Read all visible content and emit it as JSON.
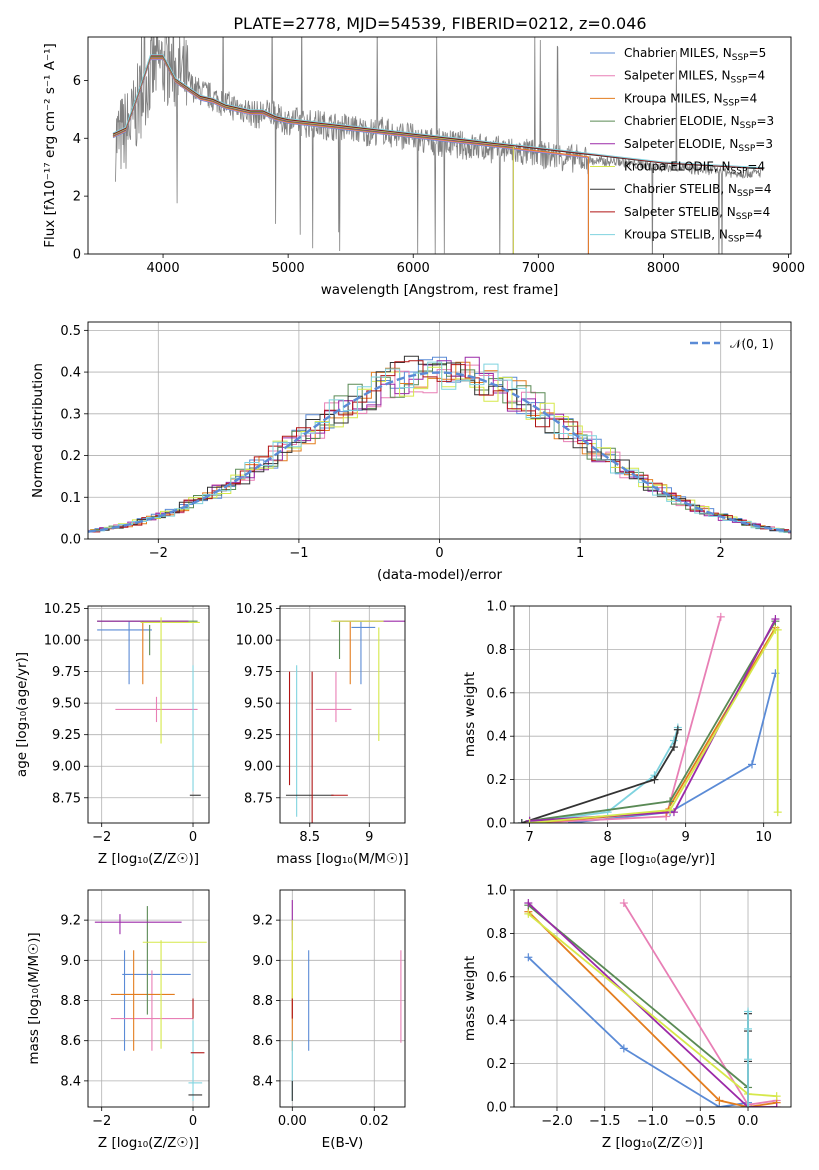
{
  "title": "PLATE=2778, MJD=54539, FIBERID=0212, z=0.046",
  "colors": {
    "chabrier_miles": "#5b8bd6",
    "salpeter_miles": "#e87fb5",
    "kroupa_miles": "#e37d1f",
    "chabrier_elodie": "#5a8a55",
    "salpeter_elodie": "#9b2aa8",
    "kroupa_elodie": "#d6e84a",
    "chabrier_stelib": "#333333",
    "salpeter_stelib": "#b01515",
    "kroupa_stelib": "#7fd3df",
    "data": "#808080",
    "gauss": "#5b8bd6"
  },
  "legend": [
    {
      "label": "Chabrier MILES, N",
      "sub": "SSP",
      "n": "=5",
      "color_key": "chabrier_miles"
    },
    {
      "label": "Salpeter MILES, N",
      "sub": "SSP",
      "n": "=4",
      "color_key": "salpeter_miles"
    },
    {
      "label": "Kroupa MILES, N",
      "sub": "SSP",
      "n": "=4",
      "color_key": "kroupa_miles"
    },
    {
      "label": "Chabrier ELODIE, N",
      "sub": "SSP",
      "n": "=3",
      "color_key": "chabrier_elodie"
    },
    {
      "label": "Salpeter ELODIE, N",
      "sub": "SSP",
      "n": "=3",
      "color_key": "salpeter_elodie"
    },
    {
      "label": "Kroupa ELODIE, N",
      "sub": "SSP",
      "n": "=4",
      "color_key": "kroupa_elodie"
    },
    {
      "label": "Chabrier STELIB, N",
      "sub": "SSP",
      "n": "=4",
      "color_key": "chabrier_stelib"
    },
    {
      "label": "Salpeter STELIB, N",
      "sub": "SSP",
      "n": "=4",
      "color_key": "salpeter_stelib"
    },
    {
      "label": "Kroupa STELIB, N",
      "sub": "SSP",
      "n": "=4",
      "color_key": "kroupa_stelib"
    }
  ],
  "chart_data": [
    {
      "id": "spectrum",
      "type": "line",
      "xlabel": "wavelength [Angstrom, rest frame]",
      "ylabel": "Flux [fλ10⁻¹⁷ erg cm⁻² s⁻¹ A⁻¹]",
      "xlim": [
        3400,
        9020
      ],
      "ylim": [
        0,
        7.5
      ],
      "xticks": [
        4000,
        5000,
        6000,
        7000,
        8000,
        9000
      ],
      "yticks": [
        0,
        2,
        4,
        6
      ],
      "data_x": [
        3650,
        3750,
        3850,
        3950,
        4050,
        4150,
        4250,
        4350,
        4450,
        4550,
        4650,
        4750,
        4850,
        4950,
        5050,
        5150,
        5250,
        5350,
        5450,
        5550,
        5650,
        5750,
        5850,
        5950,
        6050,
        6150,
        6250,
        6350,
        6450,
        6550,
        6650,
        6750,
        6850,
        6950,
        7050,
        7150,
        7250,
        7350,
        7450,
        7550,
        7650,
        7750,
        7850,
        7950,
        8050,
        8150,
        8250,
        8350,
        8450,
        8550,
        8650,
        8750
      ],
      "data_y": [
        4.0,
        4.5,
        5.8,
        6.6,
        6.5,
        6.2,
        5.7,
        5.5,
        5.3,
        5.1,
        5.0,
        4.8,
        4.9,
        4.6,
        4.6,
        4.5,
        4.5,
        4.4,
        4.4,
        4.3,
        4.2,
        4.3,
        4.1,
        4.1,
        3.9,
        3.9,
        3.8,
        3.8,
        3.7,
        3.7,
        3.6,
        3.6,
        3.5,
        3.5,
        3.4,
        3.4,
        3.3,
        3.3,
        3.2,
        3.2,
        3.2,
        3.1,
        3.1,
        3.0,
        3.0,
        3.0,
        2.9,
        2.9,
        2.9,
        2.8,
        2.8,
        2.8
      ],
      "model_x": [
        3600,
        3700,
        3800,
        3900,
        4000,
        4100,
        4200,
        4300,
        4400,
        4500,
        4600,
        4700,
        4800,
        4900,
        5000,
        5200,
        5400,
        5600,
        5800,
        6000,
        6200,
        6400,
        6600,
        6800,
        7000,
        7200,
        7400,
        7600,
        7800,
        8000,
        8200,
        8400,
        8600,
        8800
      ],
      "model_y": [
        4.1,
        4.3,
        5.5,
        6.8,
        6.8,
        6.0,
        5.7,
        5.4,
        5.3,
        5.1,
        5.0,
        4.9,
        4.9,
        4.7,
        4.6,
        4.5,
        4.4,
        4.3,
        4.2,
        4.1,
        4.0,
        3.9,
        3.8,
        3.7,
        3.6,
        3.5,
        3.4,
        3.3,
        3.2,
        3.1,
        3.05,
        3.0,
        2.95,
        2.9
      ]
    },
    {
      "id": "residuals",
      "type": "line",
      "xlabel": "(data-model)/error",
      "ylabel": "Normed distribution",
      "xlim": [
        -2.5,
        2.5
      ],
      "ylim": [
        0,
        0.52
      ],
      "xticks": [
        -2,
        -1,
        0,
        1,
        2
      ],
      "yticks": [
        0.0,
        0.1,
        0.2,
        0.3,
        0.4,
        0.5
      ],
      "legend": "𝒩(0, 1)",
      "gauss_mean": 0,
      "gauss_sigma": 1
    },
    {
      "id": "age-vs-Z",
      "type": "scatter",
      "xlabel": "Z [log₁₀(Z/Z☉)]",
      "ylabel": "age  [log₁₀(age/yr)]",
      "xlim": [
        -2.3,
        0.35
      ],
      "ylim": [
        8.55,
        10.27
      ],
      "xticks": [
        -2,
        0
      ],
      "yticks": [
        8.75,
        9.0,
        9.25,
        9.5,
        9.75,
        10.0,
        10.25
      ],
      "points": [
        {
          "c": "chabrier_miles",
          "x": -1.5,
          "xe": 0.6,
          "y": 10.08,
          "ye": 0.0
        },
        {
          "c": "chabrier_miles",
          "x": -1.4,
          "xe": 0.0,
          "y": 9.9,
          "ye": 0.25
        },
        {
          "c": "salpeter_miles",
          "x": -0.8,
          "xe": 0.9,
          "y": 9.45,
          "ye": 0.1
        },
        {
          "c": "kroupa_miles",
          "x": -1.1,
          "xe": 0.0,
          "y": 9.9,
          "ye": 0.25
        },
        {
          "c": "chabrier_elodie",
          "x": -1.0,
          "xe": 1.1,
          "y": 10.15,
          "ye": 0.0
        },
        {
          "c": "chabrier_elodie",
          "x": -0.95,
          "xe": 0.0,
          "y": 10.0,
          "ye": 0.12
        },
        {
          "c": "salpeter_elodie",
          "x": -1.1,
          "xe": 1.0,
          "y": 10.15,
          "ye": 0.0
        },
        {
          "c": "kroupa_elodie",
          "x": -0.7,
          "xe": 0.0,
          "y": 9.68,
          "ye": 0.5
        },
        {
          "c": "kroupa_elodie",
          "x": -0.5,
          "xe": 0.65,
          "y": 10.14,
          "ye": 0.0
        },
        {
          "c": "kroupa_stelib",
          "x": 0.0,
          "xe": 0.0,
          "y": 9.3,
          "ye": 0.5
        },
        {
          "c": "chabrier_stelib",
          "x": 0.05,
          "xe": 0.12,
          "y": 8.77,
          "ye": 0.0
        }
      ]
    },
    {
      "id": "age-vs-mass",
      "type": "scatter",
      "xlabel": "mass [log₁₀(M/M☉)]",
      "ylabel": "",
      "xlim": [
        8.25,
        9.3
      ],
      "ylim": [
        8.55,
        10.27
      ],
      "xticks": [
        8.5,
        9.0
      ],
      "yticks": [
        8.75,
        9.0,
        9.25,
        9.5,
        9.75,
        10.0,
        10.25
      ],
      "points": [
        {
          "c": "chabrier_miles",
          "x": 8.95,
          "xe": 0.1,
          "y": 10.1,
          "ye": 0.0
        },
        {
          "c": "chabrier_miles",
          "x": 8.93,
          "xe": 0.0,
          "y": 9.9,
          "ye": 0.25
        },
        {
          "c": "salpeter_miles",
          "x": 8.7,
          "xe": 0.15,
          "y": 9.45,
          "ye": 0.0
        },
        {
          "c": "salpeter_miles",
          "x": 8.72,
          "xe": 0.0,
          "y": 9.55,
          "ye": 0.2
        },
        {
          "c": "kroupa_miles",
          "x": 8.84,
          "xe": 0.0,
          "y": 9.9,
          "ye": 0.25
        },
        {
          "c": "chabrier_elodie",
          "x": 8.75,
          "xe": 0.0,
          "y": 10.0,
          "ye": 0.15
        },
        {
          "c": "salpeter_elodie",
          "x": 9.0,
          "xe": 0.3,
          "y": 10.15,
          "ye": 0.0
        },
        {
          "c": "kroupa_elodie",
          "x": 8.9,
          "xe": 0.22,
          "y": 10.15,
          "ye": 0.0
        },
        {
          "c": "kroupa_elodie",
          "x": 9.08,
          "xe": 0.0,
          "y": 9.65,
          "ye": 0.45
        },
        {
          "c": "kroupa_stelib",
          "x": 8.39,
          "xe": 0.0,
          "y": 9.2,
          "ye": 0.6
        },
        {
          "c": "chabrier_stelib",
          "x": 8.5,
          "xe": 0.2,
          "y": 8.77,
          "ye": 0.0
        },
        {
          "c": "salpeter_stelib",
          "x": 8.52,
          "xe": 0.0,
          "y": 9.15,
          "ye": 0.6
        },
        {
          "c": "salpeter_stelib",
          "x": 8.75,
          "xe": 0.07,
          "y": 8.77,
          "ye": 0.0
        },
        {
          "c": "salpeter_stelib",
          "x": 8.33,
          "xe": 0.0,
          "y": 9.3,
          "ye": 0.45
        }
      ]
    },
    {
      "id": "weight-vs-age",
      "type": "line",
      "xlabel": "age  [log₁₀(age/yr)]",
      "ylabel": "mass weight",
      "xlim": [
        6.8,
        10.35
      ],
      "ylim": [
        0,
        1.0
      ],
      "xticks": [
        7,
        8,
        9,
        10
      ],
      "yticks": [
        0.0,
        0.2,
        0.4,
        0.6,
        0.8,
        1.0
      ],
      "series": [
        {
          "c": "kroupa_stelib",
          "x": [
            6.9,
            8.0,
            8.6,
            8.85,
            8.9
          ],
          "y": [
            0.0,
            0.05,
            0.22,
            0.38,
            0.44
          ]
        },
        {
          "c": "chabrier_stelib",
          "x": [
            6.9,
            8.6,
            8.85,
            8.9
          ],
          "y": [
            0.0,
            0.2,
            0.35,
            0.43
          ]
        },
        {
          "c": "chabrier_miles",
          "x": [
            7.5,
            8.8,
            9.85,
            10.15
          ],
          "y": [
            0.0,
            0.05,
            0.27,
            0.69
          ]
        },
        {
          "c": "salpeter_miles",
          "x": [
            7.0,
            8.75,
            9.45
          ],
          "y": [
            0.0,
            0.03,
            0.95
          ]
        },
        {
          "c": "kroupa_miles",
          "x": [
            7.0,
            8.75,
            10.15
          ],
          "y": [
            0.0,
            0.05,
            0.9
          ]
        },
        {
          "c": "chabrier_elodie",
          "x": [
            7.0,
            8.8,
            10.15
          ],
          "y": [
            0.01,
            0.1,
            0.93
          ]
        },
        {
          "c": "salpeter_elodie",
          "x": [
            7.0,
            8.85,
            10.15
          ],
          "y": [
            0.01,
            0.05,
            0.94
          ]
        },
        {
          "c": "kroupa_elodie",
          "x": [
            7.0,
            8.8,
            10.15,
            10.18,
            10.18
          ],
          "y": [
            0.0,
            0.06,
            0.89,
            0.89,
            0.05
          ]
        }
      ]
    },
    {
      "id": "mass-vs-Z",
      "type": "scatter",
      "xlabel": "Z [log₁₀(Z/Z☉)]",
      "ylabel": "mass [log₁₀(M/M☉)]",
      "xlim": [
        -2.3,
        0.35
      ],
      "ylim": [
        8.27,
        9.35
      ],
      "xticks": [
        -2,
        0
      ],
      "yticks": [
        8.4,
        8.6,
        8.8,
        9.0,
        9.2
      ],
      "points": [
        {
          "c": "chabrier_miles",
          "x": -1.5,
          "xe": 0.0,
          "y": 8.8,
          "ye": 0.25
        },
        {
          "c": "chabrier_miles",
          "x": -0.8,
          "xe": 0.75,
          "y": 8.93,
          "ye": 0.0
        },
        {
          "c": "salpeter_miles",
          "x": -0.9,
          "xe": 0.9,
          "y": 8.71,
          "ye": 0.0
        },
        {
          "c": "salpeter_miles",
          "x": -0.9,
          "xe": 0.0,
          "y": 8.75,
          "ye": 0.2
        },
        {
          "c": "kroupa_miles",
          "x": -1.1,
          "xe": 0.7,
          "y": 8.83,
          "ye": 0.0
        },
        {
          "c": "kroupa_miles",
          "x": -1.3,
          "xe": 0.0,
          "y": 8.8,
          "ye": 0.25
        },
        {
          "c": "chabrier_elodie",
          "x": -1.0,
          "xe": 0.0,
          "y": 9.0,
          "ye": 0.27
        },
        {
          "c": "salpeter_elodie",
          "x": -1.2,
          "xe": 0.95,
          "y": 9.19,
          "ye": 0.0
        },
        {
          "c": "salpeter_elodie",
          "x": -1.6,
          "xe": 0.0,
          "y": 9.18,
          "ye": 0.05
        },
        {
          "c": "kroupa_elodie",
          "x": -0.7,
          "xe": 0.0,
          "y": 8.83,
          "ye": 0.27
        },
        {
          "c": "kroupa_elodie",
          "x": -0.4,
          "xe": 0.7,
          "y": 9.09,
          "ye": 0.0
        },
        {
          "c": "kroupa_stelib",
          "x": 0.0,
          "xe": 0.0,
          "y": 8.5,
          "ye": 0.2
        },
        {
          "c": "kroupa_stelib",
          "x": 0.05,
          "xe": 0.15,
          "y": 8.39,
          "ye": 0.0
        },
        {
          "c": "chabrier_stelib",
          "x": 0.05,
          "xe": 0.15,
          "y": 8.33,
          "ye": 0.0
        },
        {
          "c": "salpeter_stelib",
          "x": 0.1,
          "xe": 0.15,
          "y": 8.54,
          "ye": 0.0
        },
        {
          "c": "salpeter_stelib",
          "x": 0.0,
          "xe": 0.0,
          "y": 8.76,
          "ye": 0.05
        }
      ]
    },
    {
      "id": "mass-vs-ebv",
      "type": "scatter",
      "xlabel": "E(B-V)",
      "ylabel": "",
      "xlim": [
        -0.003,
        0.0275
      ],
      "ylim": [
        8.27,
        9.35
      ],
      "xticks": [
        0.0,
        0.02
      ],
      "xticklabels": [
        "0.00",
        "0.02"
      ],
      "yticks": [
        8.4,
        8.6,
        8.8,
        9.0,
        9.2
      ],
      "points": [
        {
          "c": "chabrier_miles",
          "x": 0.004,
          "xe": 0.0,
          "y": 8.8,
          "ye": 0.25
        },
        {
          "c": "salpeter_miles",
          "x": 0.0265,
          "xe": 0.0,
          "y": 8.82,
          "ye": 0.23
        },
        {
          "c": "kroupa_miles",
          "x": 0.0,
          "xe": 0.0,
          "y": 8.8,
          "ye": 0.25
        },
        {
          "c": "salpeter_elodie",
          "x": 0.0,
          "xe": 0.0,
          "y": 9.2,
          "ye": 0.1
        },
        {
          "c": "kroupa_elodie",
          "x": 0.0,
          "xe": 0.0,
          "y": 9.0,
          "ye": 0.2
        },
        {
          "c": "salpeter_stelib",
          "x": 0.0,
          "xe": 0.0,
          "y": 8.76,
          "ye": 0.05
        },
        {
          "c": "kroupa_stelib",
          "x": 0.0,
          "xe": 0.0,
          "y": 8.45,
          "ye": 0.15
        },
        {
          "c": "chabrier_stelib",
          "x": 0.0,
          "xe": 0.0,
          "y": 8.35,
          "ye": 0.05
        }
      ]
    },
    {
      "id": "weight-vs-Z",
      "type": "line",
      "xlabel": "Z [log₁₀(Z/Z☉)]",
      "ylabel": "mass weight",
      "xlim": [
        -2.45,
        0.45
      ],
      "ylim": [
        0,
        1.0
      ],
      "xticks": [
        -2.0,
        -1.5,
        -1.0,
        -0.5,
        0.0
      ],
      "xticklabels": [
        "−2.0",
        "−1.5",
        "−1.0",
        "−0.5",
        "0.0"
      ],
      "yticks": [
        0.0,
        0.2,
        0.4,
        0.6,
        0.8,
        1.0
      ],
      "series": [
        {
          "c": "chabrier_miles",
          "x": [
            -2.3,
            -1.3,
            -0.3,
            0.0
          ],
          "y": [
            0.69,
            0.27,
            0.0,
            0.02
          ]
        },
        {
          "c": "salpeter_miles",
          "x": [
            -1.3,
            0.0,
            0.3
          ],
          "y": [
            0.94,
            0.01,
            0.03
          ]
        },
        {
          "c": "kroupa_miles",
          "x": [
            -2.3,
            -0.3,
            0.0,
            0.3
          ],
          "y": [
            0.9,
            0.03,
            0.0,
            0.02
          ]
        },
        {
          "c": "chabrier_elodie",
          "x": [
            -2.3,
            0.0
          ],
          "y": [
            0.93,
            0.09
          ]
        },
        {
          "c": "salpeter_elodie",
          "x": [
            -2.3,
            0.0,
            0.3
          ],
          "y": [
            0.94,
            0.0,
            0.0
          ]
        },
        {
          "c": "kroupa_elodie",
          "x": [
            -2.3,
            0.0,
            0.3
          ],
          "y": [
            0.89,
            0.06,
            0.05
          ]
        },
        {
          "c": "chabrier_stelib",
          "x": [
            0.0,
            0.0,
            0.0,
            0.0
          ],
          "y": [
            0.0,
            0.21,
            0.35,
            0.43
          ]
        },
        {
          "c": "kroupa_stelib",
          "x": [
            0.0,
            0.0,
            0.0,
            0.0
          ],
          "y": [
            0.0,
            0.22,
            0.36,
            0.44
          ]
        }
      ]
    }
  ]
}
